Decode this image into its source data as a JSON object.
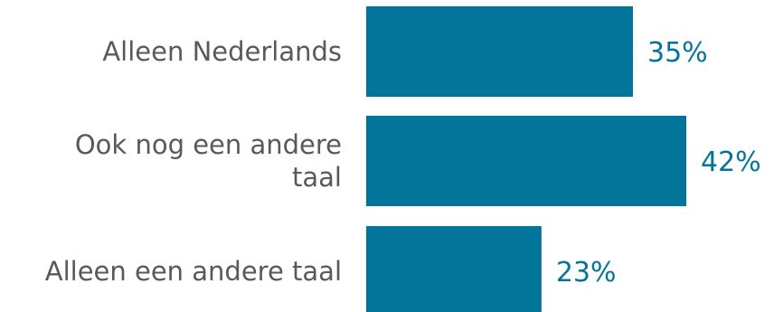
{
  "chart_data": {
    "type": "bar",
    "orientation": "horizontal",
    "categories": [
      "Alleen Nederlands",
      "Ook nog een andere taal",
      "Alleen een andere taal"
    ],
    "values": [
      35,
      42,
      23
    ],
    "value_labels": [
      "35%",
      "42%",
      "23%"
    ],
    "xlim": [
      0,
      42
    ],
    "grid": false,
    "legend": "none",
    "bar_color": "#04759A",
    "label_color": "#595959",
    "value_label_color": "#04759A"
  }
}
